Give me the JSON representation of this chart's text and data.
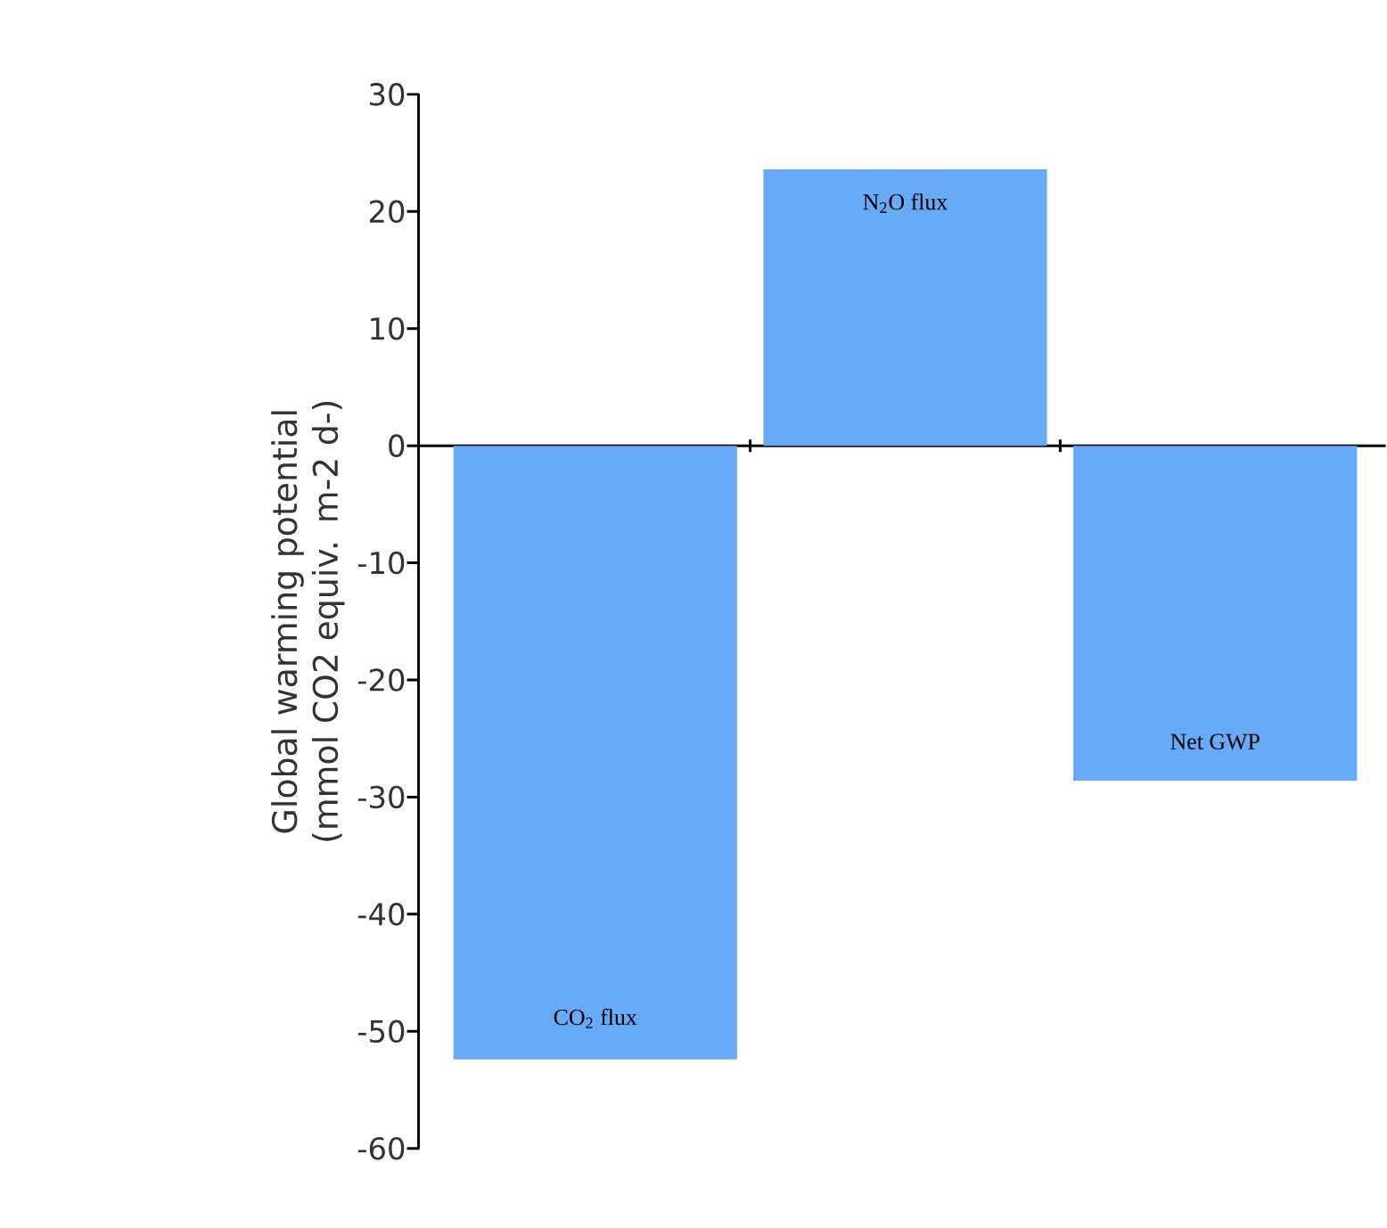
{
  "chart_data": {
    "type": "bar",
    "ylabel": "Global warming potential (mmol CO2 equiv. m-2 d-)",
    "categories": [
      null,
      null,
      null
    ],
    "values": [
      -52.4,
      23.6,
      -28.6
    ],
    "color": "#66aaf8",
    "ylim": [
      -60,
      30
    ],
    "yticks": [
      -60,
      -50,
      -40,
      -30,
      -20,
      -10,
      0,
      10,
      20,
      30
    ],
    "annotations": [
      "CO$_{2}$ flux",
      "N$_{2}$O flux",
      "Net GWP"
    ]
  }
}
